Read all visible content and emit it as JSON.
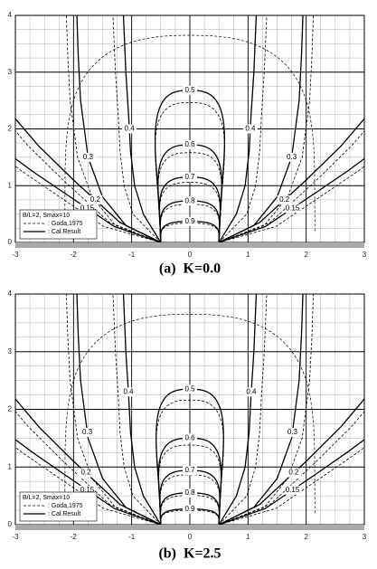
{
  "chart_data": [
    {
      "type": "contour",
      "title": "(a)  K=0.0",
      "xlim": [
        -3,
        3
      ],
      "ylim": [
        0,
        4
      ],
      "xticks": [
        -3,
        -2,
        -1,
        0,
        1,
        2,
        3
      ],
      "yticks": [
        0,
        1,
        2,
        3,
        4
      ],
      "levels": [
        0.9,
        0.8,
        0.7,
        0.6,
        0.5,
        0.4,
        0.3,
        0.2,
        0.15
      ],
      "legend_title": "B/L=2, Smax=10",
      "series": [
        {
          "name": ": Goda,1975",
          "style": "dashed"
        },
        {
          "name": ": Cal.Result",
          "style": "solid"
        }
      ],
      "grid": true
    },
    {
      "type": "contour",
      "title": "(b)  K=2.5",
      "xlim": [
        -3,
        3
      ],
      "ylim": [
        0,
        4
      ],
      "xticks": [
        -3,
        -2,
        -1,
        0,
        1,
        2,
        3
      ],
      "yticks": [
        0,
        1,
        2,
        3,
        4
      ],
      "levels": [
        0.9,
        0.8,
        0.7,
        0.6,
        0.5,
        0.4,
        0.3,
        0.2,
        0.15
      ],
      "legend_title": "B/L=2, Smax=10",
      "series": [
        {
          "name": ": Goda,1975",
          "style": "dashed"
        },
        {
          "name": ": Cal.Result",
          "style": "solid"
        }
      ],
      "grid": true
    }
  ]
}
